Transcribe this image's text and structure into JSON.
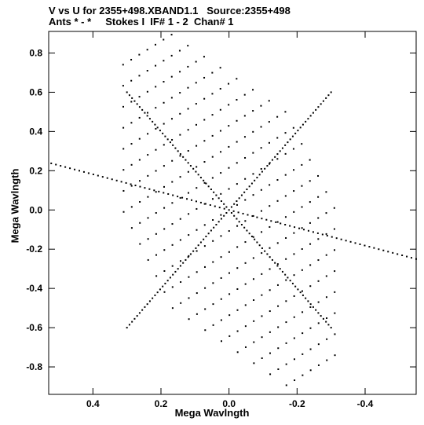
{
  "titles": {
    "line1": "V vs U for 2355+498.XBAND1.1   Source:2355+498",
    "line2": "Ants * - *     Stokes I  IF# 1 - 2  Chan# 1"
  },
  "chart_data": {
    "type": "scatter",
    "title": "V vs U for 2355+498.XBAND1.1   Source:2355+498",
    "subtitle": "Ants * - *     Stokes I  IF# 1 - 2  Chan# 1",
    "xlabel": "Mega Wavlngth",
    "ylabel": "Mega Wavlngth",
    "xlim": [
      0.53,
      -0.55
    ],
    "ylim": [
      -0.94,
      0.91
    ],
    "x_reversed": true,
    "grid": false,
    "xticks": [
      0.4,
      0.2,
      0.0,
      -0.2,
      -0.4
    ],
    "yticks": [
      0.8,
      0.6,
      0.4,
      0.2,
      0.0,
      -0.2,
      -0.4,
      -0.6,
      -0.8
    ],
    "xtick_labels": [
      "0.4",
      "0.2",
      "0.0",
      "-0.2",
      "-0.4"
    ],
    "ytick_labels": [
      "0.8",
      "0.6",
      "0.4",
      "0.2",
      "0.0",
      "-0.2",
      "-0.4",
      "-0.6",
      "-0.8"
    ],
    "marker_color": "#000000",
    "pattern": {
      "description": "u-v coverage: points lie on a lattice spanned by two baseline directions plus radial tracks; plotted symmetric about origin",
      "arm_A": [
        0.4,
        0.86
      ],
      "arm_B": [
        0.72,
        0.33
      ],
      "grid_extent_A": [
        -1.0,
        1.0
      ],
      "grid_extent_B": [
        -1.0,
        1.0
      ],
      "steps": 10,
      "radial_tracks": [
        [
          0.0,
          0.0,
          0.3,
          0.6
        ],
        [
          0.0,
          0.0,
          0.55,
          0.25
        ],
        [
          0.0,
          0.0,
          -0.3,
          0.6
        ]
      ]
    }
  }
}
